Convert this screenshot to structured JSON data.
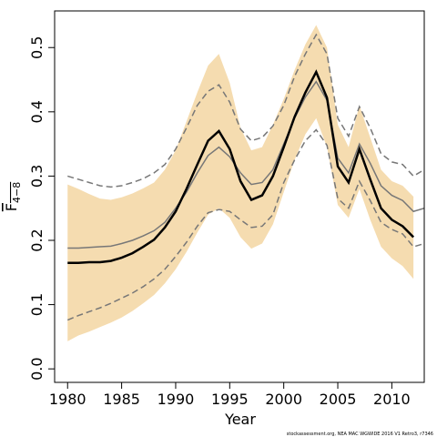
{
  "chart_data": {
    "type": "line",
    "xlabel": "Year",
    "ylabel": "F",
    "ylabel_subscript": "4−8",
    "footnote": "stockassessment.org, NEA MAC WGWIDE 2016 V1 Retro3, r7346",
    "x": [
      1980,
      1981,
      1982,
      1983,
      1984,
      1985,
      1986,
      1987,
      1988,
      1989,
      1990,
      1991,
      1992,
      1993,
      1994,
      1995,
      1996,
      1997,
      1998,
      1999,
      2000,
      2001,
      2002,
      2003,
      2004,
      2005,
      2006,
      2007,
      2008,
      2009,
      2010,
      2011,
      2012,
      2013
    ],
    "xlim": [
      1978.8,
      2013.0
    ],
    "xticks": [
      1980,
      1985,
      1990,
      1995,
      2000,
      2005,
      2010
    ],
    "ylim": [
      -0.021,
      0.557
    ],
    "yticks": [
      {
        "value": 0,
        "label": "0.0"
      },
      0.1,
      0.2,
      0.3,
      0.4,
      0.5
    ],
    "band": {
      "color": "#f5dcb0",
      "lower": [
        0.043,
        0.052,
        0.058,
        0.065,
        0.072,
        0.08,
        0.09,
        0.102,
        0.115,
        0.133,
        0.155,
        0.182,
        0.212,
        0.24,
        0.25,
        0.235,
        0.205,
        0.187,
        0.195,
        0.225,
        0.275,
        0.325,
        0.365,
        0.39,
        0.345,
        0.255,
        0.235,
        0.28,
        0.232,
        0.19,
        0.172,
        0.16,
        0.14,
        null
      ],
      "upper": [
        0.287,
        0.28,
        0.272,
        0.265,
        0.263,
        0.267,
        0.273,
        0.281,
        0.29,
        0.31,
        0.34,
        0.385,
        0.43,
        0.472,
        0.49,
        0.445,
        0.375,
        0.34,
        0.345,
        0.38,
        0.42,
        0.465,
        0.505,
        0.535,
        0.5,
        0.38,
        0.345,
        0.41,
        0.36,
        0.31,
        0.292,
        0.285,
        0.268,
        null
      ]
    },
    "series": [
      {
        "color": "#777777",
        "style": "solid",
        "width": 1.5,
        "values": [
          0.188,
          0.188,
          0.189,
          0.19,
          0.191,
          0.195,
          0.2,
          0.207,
          0.215,
          0.228,
          0.25,
          0.275,
          0.305,
          0.332,
          0.345,
          0.33,
          0.305,
          0.287,
          0.29,
          0.31,
          0.35,
          0.39,
          0.423,
          0.447,
          0.418,
          0.328,
          0.305,
          0.35,
          0.32,
          0.285,
          0.27,
          0.262,
          0.245,
          0.25
        ]
      },
      {
        "color": "#777777",
        "style": "dashed",
        "width": 1.5,
        "values": [
          0.3,
          0.295,
          0.29,
          0.285,
          0.283,
          0.285,
          0.29,
          0.296,
          0.305,
          0.318,
          0.342,
          0.375,
          0.41,
          0.432,
          0.442,
          0.415,
          0.373,
          0.355,
          0.36,
          0.378,
          0.41,
          0.455,
          0.49,
          0.52,
          0.49,
          0.39,
          0.362,
          0.408,
          0.375,
          0.335,
          0.322,
          0.318,
          0.3,
          0.31
        ]
      },
      {
        "color": "#777777",
        "style": "dashed",
        "width": 1.5,
        "values": [
          0.076,
          0.083,
          0.089,
          0.095,
          0.102,
          0.11,
          0.118,
          0.128,
          0.14,
          0.155,
          0.175,
          0.197,
          0.222,
          0.243,
          0.248,
          0.245,
          0.232,
          0.22,
          0.222,
          0.24,
          0.29,
          0.325,
          0.355,
          0.372,
          0.348,
          0.265,
          0.25,
          0.292,
          0.262,
          0.228,
          0.217,
          0.21,
          0.19,
          0.195
        ]
      },
      {
        "color": "#000000",
        "style": "solid",
        "width": 2.5,
        "values": [
          0.165,
          0.165,
          0.166,
          0.166,
          0.168,
          0.173,
          0.18,
          0.19,
          0.201,
          0.22,
          0.245,
          0.28,
          0.318,
          0.355,
          0.37,
          0.342,
          0.292,
          0.263,
          0.27,
          0.3,
          0.345,
          0.392,
          0.43,
          0.462,
          0.422,
          0.315,
          0.29,
          0.342,
          0.295,
          0.25,
          0.232,
          0.222,
          0.205,
          null
        ]
      }
    ]
  }
}
